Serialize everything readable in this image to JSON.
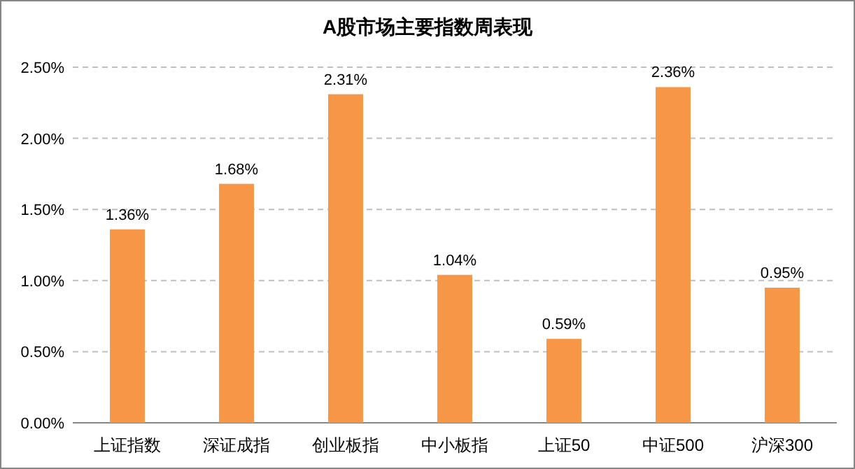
{
  "chart_data": {
    "type": "bar",
    "title": "A股市场主要指数周表现",
    "categories": [
      "上证指数",
      "深证成指",
      "创业板指",
      "中小板指",
      "上证50",
      "中证500",
      "沪深300"
    ],
    "values": [
      1.36,
      1.68,
      2.31,
      1.04,
      0.59,
      2.36,
      0.95
    ],
    "value_labels": [
      "1.36%",
      "1.68%",
      "2.31%",
      "1.04%",
      "0.59%",
      "2.36%",
      "0.95%"
    ],
    "color": "#f79646",
    "ylim": [
      0,
      2.5
    ],
    "yticks": [
      {
        "value": 0,
        "label": "0.00%"
      },
      {
        "value": 0.5,
        "label": "0.50%"
      },
      {
        "value": 1,
        "label": "1.00%"
      },
      {
        "value": 1.5,
        "label": "1.50%"
      },
      {
        "value": 2,
        "label": "2.00%"
      },
      {
        "value": 2.5,
        "label": "2.50%"
      }
    ],
    "grid": "y"
  }
}
